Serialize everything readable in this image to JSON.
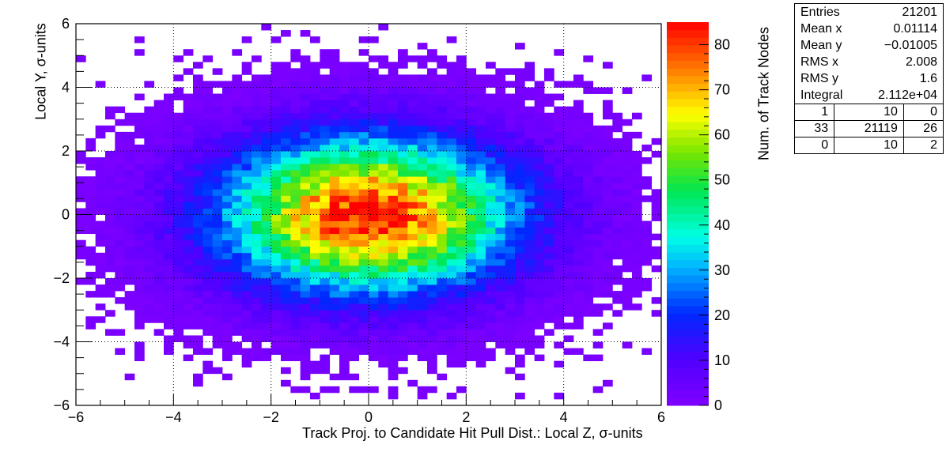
{
  "chart_data": {
    "type": "heatmap",
    "title": "",
    "xlabel": "Track Proj. to Candidate Hit Pull Dist.: Local Z, σ-units",
    "ylabel": "Local Y, σ-units",
    "zlabel": "Num. of Track Nodes",
    "xlim": [
      -6,
      6
    ],
    "ylim": [
      -6,
      6
    ],
    "zlim": [
      0,
      85
    ],
    "grid": true,
    "bins": {
      "nx": 60,
      "ny": 60
    },
    "palette": "rainbow (purple → blue → cyan → green → yellow → red)",
    "distribution_note": "2D Gaussian-like density; peak ≈ 84 at (0,0)",
    "x_ticks": [
      "−6",
      "−4",
      "−2",
      "0",
      "2",
      "4",
      "6"
    ],
    "y_ticks": [
      "−6",
      "−4",
      "−2",
      "0",
      "2",
      "4",
      "6"
    ],
    "z_ticks": [
      "0",
      "10",
      "20",
      "30",
      "40",
      "50",
      "60",
      "70",
      "80"
    ],
    "peak_count": 84,
    "sigma_x": 2.008,
    "sigma_y": 1.6,
    "stats": [
      {
        "label": "Entries",
        "value": "21201"
      },
      {
        "label": "Mean x",
        "value": "0.01114"
      },
      {
        "label": "Mean y",
        "value": "−0.01005"
      },
      {
        "label": "RMS x",
        "value": "2.008"
      },
      {
        "label": "RMS y",
        "value": "1.6"
      },
      {
        "label": "Integral",
        "value": "2.112e+04"
      }
    ],
    "over_under": [
      [
        "1",
        "10",
        "0"
      ],
      [
        "33",
        "21119",
        "26"
      ],
      [
        "0",
        "10",
        "2"
      ]
    ]
  }
}
